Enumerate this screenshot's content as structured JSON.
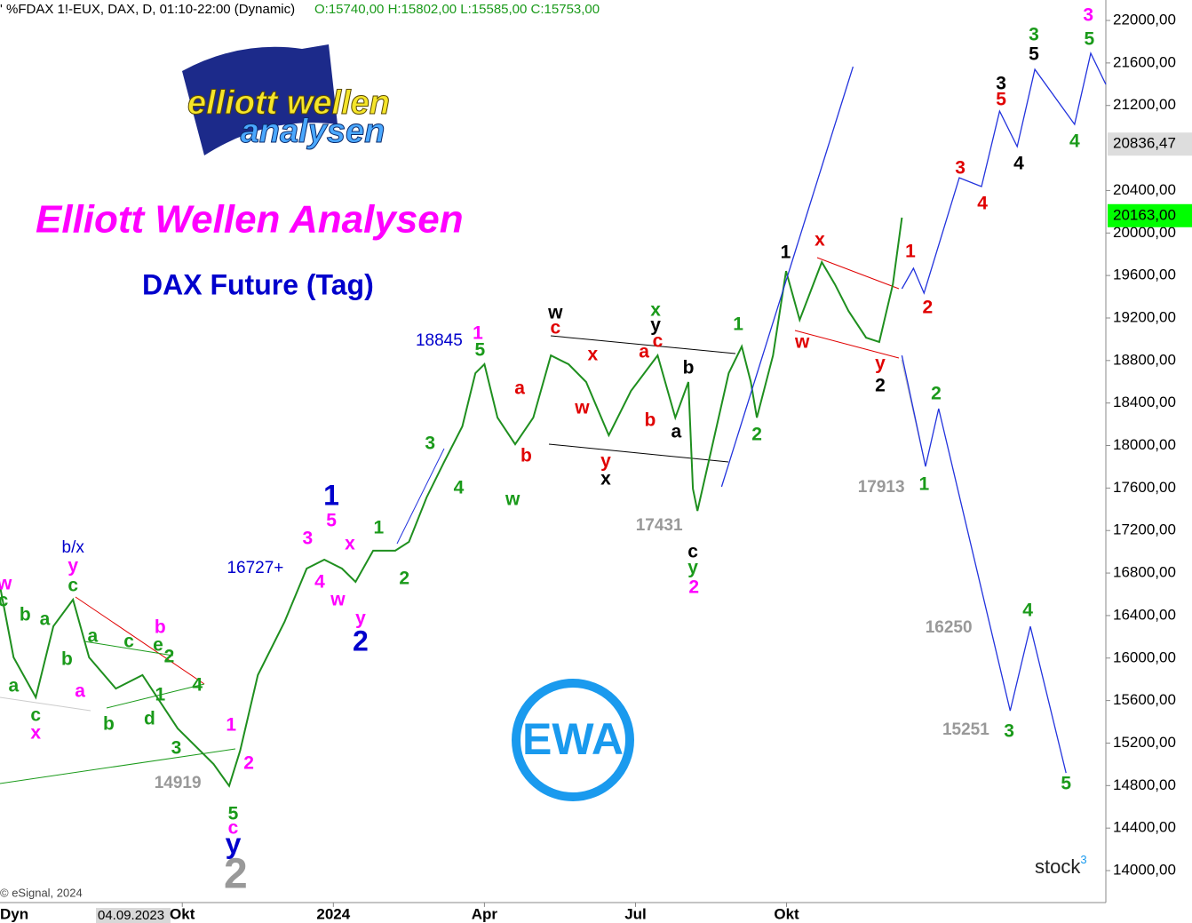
{
  "chart_data": {
    "type": "line",
    "header": {
      "symbol": "' %FDAX 1!-EUX, DAX, D, 01:10-22:00 (Dynamic)",
      "ohlc": "O:15740,00 H:15802,00 L:15585,00 C:15753,00"
    },
    "title": "Elliott Wellen Analysen",
    "subtitle": "DAX Future (Tag)",
    "logo": {
      "line1": "elliott wellen",
      "line2": "analysen",
      "badge": "EWA"
    },
    "copyright": "© eSignal, 2024",
    "brand": "stock",
    "brand_sup": "3",
    "footer": {
      "mode": "Dyn",
      "date": "04.09.2023"
    },
    "xlim": [
      6.38,
      28.34
    ],
    "xticks": [
      {
        "value": 10,
        "label": "Okt"
      },
      {
        "value": 13,
        "label": "2024"
      },
      {
        "value": 16,
        "label": "Apr"
      },
      {
        "value": 19,
        "label": "Jul"
      },
      {
        "value": 22,
        "label": "Okt"
      }
    ],
    "ylim": [
      13700,
      22190
    ],
    "yticks": [
      {
        "value": 14000,
        "label": "14000,00"
      },
      {
        "value": 14400,
        "label": "14400,00"
      },
      {
        "value": 14800,
        "label": "14800,00"
      },
      {
        "value": 15200,
        "label": "15200,00"
      },
      {
        "value": 15600,
        "label": "15600,00"
      },
      {
        "value": 16000,
        "label": "16000,00"
      },
      {
        "value": 16400,
        "label": "16400,00"
      },
      {
        "value": 16800,
        "label": "16800,00"
      },
      {
        "value": 17200,
        "label": "17200,00"
      },
      {
        "value": 17600,
        "label": "17600,00"
      },
      {
        "value": 18000,
        "label": "18000,00"
      },
      {
        "value": 18400,
        "label": "18400,00"
      },
      {
        "value": 18800,
        "label": "18800,00"
      },
      {
        "value": 19200,
        "label": "19200,00"
      },
      {
        "value": 19600,
        "label": "19600,00"
      },
      {
        "value": 20000,
        "label": "20000,00"
      },
      {
        "value": 20400,
        "label": "20400,00"
      },
      {
        "value": 21200,
        "label": "21200,00"
      },
      {
        "value": 21600,
        "label": "21600,00"
      },
      {
        "value": 22000,
        "label": "22000,00"
      }
    ],
    "price_markers": [
      {
        "value": 20836.47,
        "label": "20836,47",
        "color": "#dddddd"
      },
      {
        "value": 20163,
        "label": "20163,00",
        "color": "#00ff00"
      }
    ],
    "series": [
      {
        "color": "#1f8f1f",
        "x": [
          6.38,
          6.65,
          7.09,
          7.44,
          7.83,
          8.15,
          8.68,
          9.21,
          9.91,
          10.62,
          10.93,
          11.15,
          11.5,
          12.03,
          12.47,
          12.82,
          13.17,
          13.44,
          13.79,
          14.23,
          14.5,
          14.85,
          15.2,
          15.56,
          15.82,
          16.0,
          16.26,
          16.61,
          16.97,
          17.32,
          17.67,
          18.02,
          18.47,
          18.91,
          19.44,
          19.79,
          20.05,
          20.14,
          20.23,
          20.49,
          20.85,
          21.11,
          21.29,
          21.41,
          21.73,
          21.99,
          22.26,
          22.7,
          22.96,
          23.23,
          23.58,
          23.84,
          24.11,
          24.29
        ],
        "values": [
          16675,
          16006,
          15630,
          16300,
          16550,
          16006,
          15713,
          15840,
          15337,
          15003,
          14797,
          15130,
          15840,
          16340,
          16842,
          16926,
          16842,
          16717,
          17010,
          17010,
          17093,
          17510,
          17845,
          18180,
          18681,
          18765,
          18263,
          18012,
          18263,
          18848,
          18765,
          18598,
          18096,
          18514,
          18848,
          18263,
          18598,
          17594,
          17385,
          17928,
          18681,
          18932,
          18598,
          18263,
          18848,
          19642,
          19182,
          19726,
          19517,
          19266,
          19015,
          18974,
          19517,
          20144
        ]
      },
      {
        "color": "#2233dd",
        "x": [
          20.71,
          23.32
        ],
        "values": [
          17612,
          21565
        ]
      },
      {
        "color": "#2233dd",
        "x": [
          24.29,
          24.52,
          24.73,
          25.43,
          25.87,
          26.23,
          26.58,
          26.93,
          27.72,
          28.04,
          28.34
        ],
        "values": [
          19475,
          19668,
          19434,
          20520,
          20437,
          21147,
          20813,
          21540,
          21022,
          21691,
          21398
        ]
      },
      {
        "color": "#2233dd",
        "x": [
          24.29,
          24.76,
          25.02,
          26.44,
          26.84,
          27.55
        ],
        "values": [
          18848,
          17803,
          18347,
          15504,
          16298,
          14919
        ]
      }
    ],
    "annotations": [
      {
        "text": "b/x",
        "x": 7.83,
        "y": 17034,
        "color": "#0000cc"
      },
      {
        "text": "y",
        "x": 7.83,
        "y": 16859,
        "color": "#ff00ff"
      },
      {
        "text": "c",
        "x": 7.83,
        "y": 16675,
        "color": "#1a9a1a"
      },
      {
        "text": "w",
        "x": 6.47,
        "y": 16691,
        "color": "#ff00ff"
      },
      {
        "text": "c",
        "x": 6.44,
        "y": 16533,
        "color": "#1a9a1a"
      },
      {
        "text": "b",
        "x": 6.88,
        "y": 16399,
        "color": "#1a9a1a"
      },
      {
        "text": "a",
        "x": 7.27,
        "y": 16357,
        "color": "#1a9a1a"
      },
      {
        "text": "a",
        "x": 6.65,
        "y": 15730,
        "color": "#1a9a1a"
      },
      {
        "text": "c",
        "x": 7.09,
        "y": 15454,
        "color": "#1a9a1a"
      },
      {
        "text": "x",
        "x": 7.09,
        "y": 15287,
        "color": "#ff00ff"
      },
      {
        "text": "a",
        "x": 8.22,
        "y": 16198,
        "color": "#1a9a1a"
      },
      {
        "text": "b",
        "x": 7.71,
        "y": 15981,
        "color": "#1a9a1a"
      },
      {
        "text": "a",
        "x": 7.97,
        "y": 15680,
        "color": "#ff00ff"
      },
      {
        "text": "c",
        "x": 8.94,
        "y": 16148,
        "color": "#1a9a1a"
      },
      {
        "text": "b",
        "x": 9.56,
        "y": 16282,
        "color": "#ff00ff"
      },
      {
        "text": "e",
        "x": 9.52,
        "y": 16115,
        "color": "#1a9a1a"
      },
      {
        "text": "2",
        "x": 9.74,
        "y": 16006,
        "color": "#1a9a1a"
      },
      {
        "text": "1",
        "x": 9.56,
        "y": 15646,
        "color": "#1a9a1a"
      },
      {
        "text": "4",
        "x": 10.3,
        "y": 15738,
        "color": "#1a9a1a"
      },
      {
        "text": "b",
        "x": 8.54,
        "y": 15371,
        "color": "#1a9a1a"
      },
      {
        "text": "d",
        "x": 9.35,
        "y": 15421,
        "color": "#1a9a1a"
      },
      {
        "text": "3",
        "x": 9.88,
        "y": 15145,
        "color": "#1a9a1a"
      },
      {
        "text": "1",
        "x": 10.97,
        "y": 15362,
        "color": "#ff00ff"
      },
      {
        "text": "2",
        "x": 11.32,
        "y": 15003,
        "color": "#ff00ff"
      },
      {
        "text": "14919",
        "x": 9.91,
        "y": 14819,
        "color": "#999999"
      },
      {
        "text": "5",
        "x": 11.01,
        "y": 14526,
        "color": "#1a9a1a"
      },
      {
        "text": "c",
        "x": 11.01,
        "y": 14392,
        "color": "#ff00ff"
      },
      {
        "text": "y",
        "x": 11.01,
        "y": 14234,
        "color": "#0000cc"
      },
      {
        "text": "2",
        "x": 11.06,
        "y": 13941,
        "color": "#999999"
      },
      {
        "text": "16727+",
        "x": 11.45,
        "y": 16842,
        "color": "#0000cc"
      },
      {
        "text": "1",
        "x": 12.96,
        "y": 17511,
        "color": "#0000cc"
      },
      {
        "text": "5",
        "x": 12.96,
        "y": 17285,
        "color": "#ff00ff"
      },
      {
        "text": "3",
        "x": 12.49,
        "y": 17118,
        "color": "#ff00ff"
      },
      {
        "text": "4",
        "x": 12.73,
        "y": 16708,
        "color": "#ff00ff"
      },
      {
        "text": "x",
        "x": 13.33,
        "y": 17068,
        "color": "#ff00ff"
      },
      {
        "text": "w",
        "x": 13.09,
        "y": 16541,
        "color": "#ff00ff"
      },
      {
        "text": "y",
        "x": 13.54,
        "y": 16365,
        "color": "#ff00ff"
      },
      {
        "text": "2",
        "x": 13.54,
        "y": 16140,
        "color": "#0000cc"
      },
      {
        "text": "1",
        "x": 13.9,
        "y": 17218,
        "color": "#1a9a1a"
      },
      {
        "text": "2",
        "x": 14.41,
        "y": 16742,
        "color": "#1a9a1a"
      },
      {
        "text": "3",
        "x": 14.92,
        "y": 18012,
        "color": "#1a9a1a"
      },
      {
        "text": "4",
        "x": 15.49,
        "y": 17594,
        "color": "#1a9a1a"
      },
      {
        "text": "18845",
        "x": 15.1,
        "y": 18982,
        "color": "#0000cc"
      },
      {
        "text": "1",
        "x": 15.87,
        "y": 19049,
        "color": "#ff00ff"
      },
      {
        "text": "5",
        "x": 15.91,
        "y": 18890,
        "color": "#1a9a1a"
      },
      {
        "text": "w",
        "x": 16.56,
        "y": 17486,
        "color": "#1a9a1a"
      },
      {
        "text": "a",
        "x": 16.7,
        "y": 18531,
        "color": "#e00000"
      },
      {
        "text": "b",
        "x": 16.83,
        "y": 17895,
        "color": "#e00000"
      },
      {
        "text": "w",
        "x": 17.41,
        "y": 19241,
        "color": "#000000"
      },
      {
        "text": "c",
        "x": 17.41,
        "y": 19099,
        "color": "#e00000"
      },
      {
        "text": "x",
        "x": 18.15,
        "y": 18848,
        "color": "#e00000"
      },
      {
        "text": "w",
        "x": 17.94,
        "y": 18347,
        "color": "#e00000"
      },
      {
        "text": "y",
        "x": 18.41,
        "y": 17845,
        "color": "#e00000"
      },
      {
        "text": "x",
        "x": 18.41,
        "y": 17678,
        "color": "#000000"
      },
      {
        "text": "x",
        "x": 19.4,
        "y": 19266,
        "color": "#1a9a1a"
      },
      {
        "text": "y",
        "x": 19.4,
        "y": 19124,
        "color": "#000000"
      },
      {
        "text": "c",
        "x": 19.44,
        "y": 18974,
        "color": "#e00000"
      },
      {
        "text": "a",
        "x": 19.17,
        "y": 18873,
        "color": "#e00000"
      },
      {
        "text": "b",
        "x": 19.29,
        "y": 18230,
        "color": "#e00000"
      },
      {
        "text": "a",
        "x": 19.81,
        "y": 18121,
        "color": "#000000"
      },
      {
        "text": "b",
        "x": 20.05,
        "y": 18723,
        "color": "#000000"
      },
      {
        "text": "17431",
        "x": 19.47,
        "y": 17243,
        "color": "#999999"
      },
      {
        "text": "c",
        "x": 20.14,
        "y": 16992,
        "color": "#000000"
      },
      {
        "text": "y",
        "x": 20.14,
        "y": 16842,
        "color": "#1a9a1a"
      },
      {
        "text": "2",
        "x": 20.16,
        "y": 16658,
        "color": "#ff00ff"
      },
      {
        "text": "1",
        "x": 21.04,
        "y": 19132,
        "color": "#1a9a1a"
      },
      {
        "text": "2",
        "x": 21.41,
        "y": 18096,
        "color": "#1a9a1a"
      },
      {
        "text": "1",
        "x": 21.98,
        "y": 19810,
        "color": "#000000"
      },
      {
        "text": "x",
        "x": 22.66,
        "y": 19927,
        "color": "#e00000"
      },
      {
        "text": "w",
        "x": 22.31,
        "y": 18965,
        "color": "#e00000"
      },
      {
        "text": "y",
        "x": 23.86,
        "y": 18765,
        "color": "#e00000"
      },
      {
        "text": "2",
        "x": 23.86,
        "y": 18556,
        "color": "#000000"
      },
      {
        "text": "1",
        "x": 24.46,
        "y": 19818,
        "color": "#e00000"
      },
      {
        "text": "2",
        "x": 24.8,
        "y": 19291,
        "color": "#e00000"
      },
      {
        "text": "17913",
        "x": 23.88,
        "y": 17603,
        "color": "#999999"
      },
      {
        "text": "1",
        "x": 24.73,
        "y": 17628,
        "color": "#1a9a1a"
      },
      {
        "text": "2",
        "x": 24.97,
        "y": 18480,
        "color": "#1a9a1a"
      },
      {
        "text": "16250",
        "x": 25.22,
        "y": 16282,
        "color": "#999999"
      },
      {
        "text": "4",
        "x": 26.79,
        "y": 16441,
        "color": "#1a9a1a"
      },
      {
        "text": "15251",
        "x": 25.56,
        "y": 15320,
        "color": "#999999"
      },
      {
        "text": "3",
        "x": 26.42,
        "y": 15304,
        "color": "#1a9a1a"
      },
      {
        "text": "5",
        "x": 27.55,
        "y": 14810,
        "color": "#1a9a1a"
      },
      {
        "text": "3",
        "x": 25.45,
        "y": 20604,
        "color": "#e00000"
      },
      {
        "text": "4",
        "x": 25.89,
        "y": 20270,
        "color": "#e00000"
      },
      {
        "text": "3",
        "x": 26.26,
        "y": 21398,
        "color": "#000000"
      },
      {
        "text": "5",
        "x": 26.26,
        "y": 21248,
        "color": "#e00000"
      },
      {
        "text": "4",
        "x": 26.61,
        "y": 20646,
        "color": "#000000"
      },
      {
        "text": "3",
        "x": 26.91,
        "y": 21858,
        "color": "#1a9a1a"
      },
      {
        "text": "5",
        "x": 26.91,
        "y": 21674,
        "color": "#000000"
      },
      {
        "text": "4",
        "x": 27.72,
        "y": 20855,
        "color": "#1a9a1a"
      },
      {
        "text": "3",
        "x": 27.99,
        "y": 22042,
        "color": "#ff00ff"
      },
      {
        "text": "5",
        "x": 28.01,
        "y": 21816,
        "color": "#1a9a1a"
      }
    ]
  }
}
